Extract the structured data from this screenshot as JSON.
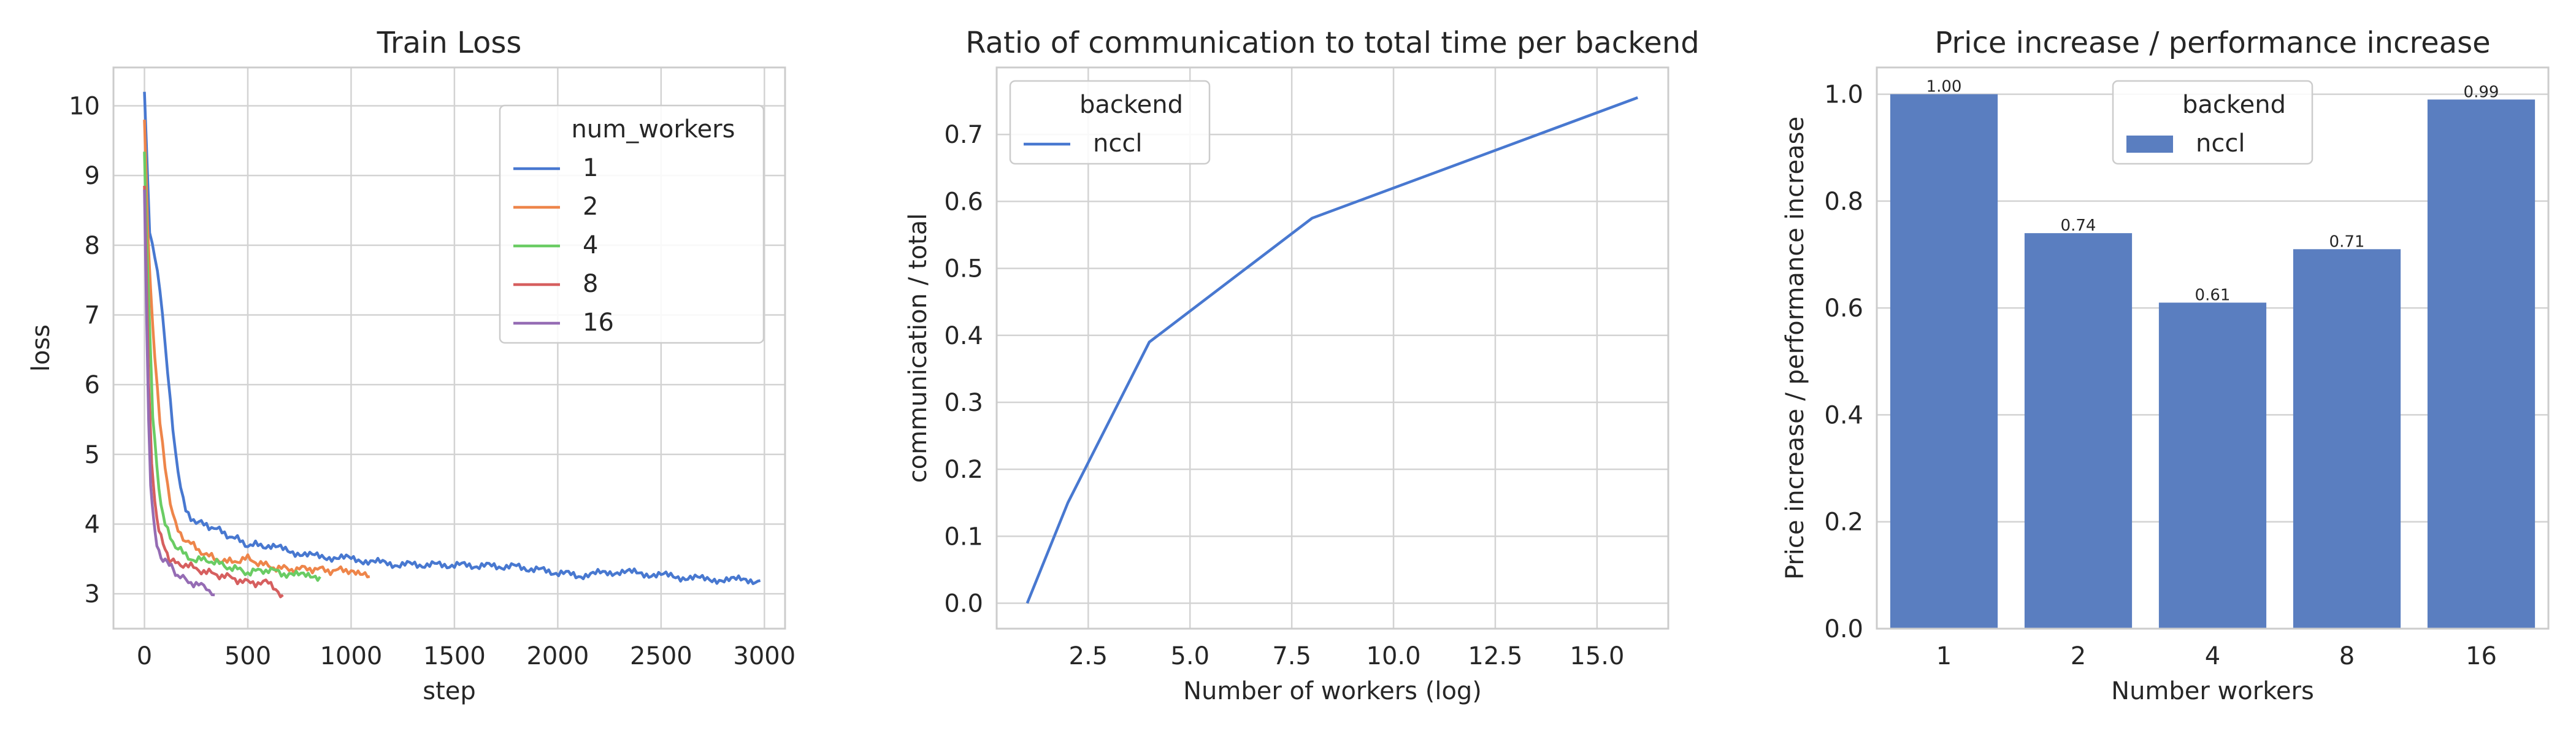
{
  "colors": {
    "blue": "#4878d0",
    "orange": "#ee854a",
    "green": "#6acc64",
    "red": "#d65f5f",
    "purple": "#956cb4",
    "bar": "#5a7ec0",
    "grid": "#d3d3d3",
    "axes_edge": "#cccccc"
  },
  "chart_data": [
    {
      "type": "line",
      "title": "Train Loss",
      "xlabel": "step",
      "ylabel": "loss",
      "xlim": [
        -150,
        3100
      ],
      "ylim": [
        2.5,
        10.55
      ],
      "xticks": [
        0,
        500,
        1000,
        1500,
        2000,
        2500,
        3000
      ],
      "xtick_labels": [
        "0",
        "500",
        "1000",
        "1500",
        "2000",
        "2500",
        "3000"
      ],
      "yticks": [
        3,
        4,
        5,
        6,
        7,
        8,
        9,
        10
      ],
      "ytick_labels": [
        "3",
        "4",
        "5",
        "6",
        "7",
        "8",
        "9",
        "10"
      ],
      "grid": true,
      "legend": {
        "title": "num_workers",
        "placement": "upper right"
      },
      "series": [
        {
          "name": "1",
          "color": "blue",
          "x": [
            0,
            25,
            50,
            75,
            100,
            125,
            150,
            175,
            200,
            250,
            300,
            400,
            500,
            600,
            800,
            1000,
            1200,
            1500,
            1800,
            2100,
            2300,
            2500,
            2700,
            2980
          ],
          "y": [
            10.15,
            8.2,
            7.9,
            7.3,
            6.6,
            5.8,
            5.0,
            4.5,
            4.2,
            4.05,
            3.95,
            3.85,
            3.75,
            3.65,
            3.55,
            3.5,
            3.45,
            3.4,
            3.35,
            3.32,
            3.3,
            3.25,
            3.22,
            3.2
          ]
        },
        {
          "name": "2",
          "color": "orange",
          "x": [
            0,
            15,
            30,
            50,
            75,
            100,
            125,
            150,
            200,
            250,
            300,
            400,
            500,
            600,
            700,
            800,
            900,
            1000,
            1090
          ],
          "y": [
            9.8,
            8.3,
            7.3,
            6.4,
            5.5,
            4.8,
            4.3,
            4.0,
            3.75,
            3.65,
            3.55,
            3.5,
            3.45,
            3.4,
            3.38,
            3.35,
            3.33,
            3.32,
            3.3
          ]
        },
        {
          "name": "4",
          "color": "green",
          "x": [
            0,
            10,
            25,
            40,
            60,
            80,
            100,
            125,
            150,
            200,
            250,
            300,
            400,
            500,
            600,
            700,
            850
          ],
          "y": [
            9.3,
            8.2,
            6.8,
            5.6,
            4.8,
            4.3,
            4.0,
            3.8,
            3.7,
            3.55,
            3.5,
            3.45,
            3.4,
            3.35,
            3.3,
            3.28,
            3.25
          ]
        },
        {
          "name": "8",
          "color": "red",
          "x": [
            0,
            10,
            20,
            35,
            50,
            70,
            90,
            120,
            150,
            200,
            300,
            400,
            500,
            600,
            670
          ],
          "y": [
            8.9,
            7.5,
            6.0,
            4.9,
            4.3,
            3.9,
            3.7,
            3.55,
            3.45,
            3.4,
            3.3,
            3.25,
            3.2,
            3.1,
            3.0
          ]
        },
        {
          "name": "16",
          "color": "purple",
          "x": [
            0,
            10,
            20,
            30,
            45,
            60,
            80,
            100,
            130,
            160,
            200,
            250,
            300,
            340
          ],
          "y": [
            8.8,
            7.0,
            5.5,
            4.6,
            4.0,
            3.7,
            3.55,
            3.45,
            3.35,
            3.3,
            3.2,
            3.15,
            3.05,
            3.0
          ]
        }
      ]
    },
    {
      "type": "line",
      "title": "Ratio of communication to total time per backend",
      "xlabel": "Number of workers (log)",
      "ylabel": "communication / total",
      "xlim": [
        0.25,
        16.75
      ],
      "ylim": [
        -0.038,
        0.8
      ],
      "xticks": [
        2.5,
        5.0,
        7.5,
        10.0,
        12.5,
        15.0
      ],
      "xtick_labels": [
        "2.5",
        "5.0",
        "7.5",
        "10.0",
        "12.5",
        "15.0"
      ],
      "yticks": [
        0.0,
        0.1,
        0.2,
        0.3,
        0.4,
        0.5,
        0.6,
        0.7
      ],
      "ytick_labels": [
        "0.0",
        "0.1",
        "0.2",
        "0.3",
        "0.4",
        "0.5",
        "0.6",
        "0.7"
      ],
      "grid": true,
      "legend": {
        "title": "backend",
        "placement": "upper left"
      },
      "series": [
        {
          "name": "nccl",
          "color": "blue",
          "x": [
            1,
            2,
            4,
            8,
            16
          ],
          "y": [
            0.0,
            0.15,
            0.39,
            0.575,
            0.755
          ]
        }
      ]
    },
    {
      "type": "bar",
      "title": "Price increase / performance increase",
      "xlabel": "Number workers",
      "ylabel": "Price increase / performance increase",
      "ylim": [
        0,
        1.05
      ],
      "yticks": [
        0.0,
        0.2,
        0.4,
        0.6,
        0.8,
        1.0
      ],
      "ytick_labels": [
        "0.0",
        "0.2",
        "0.4",
        "0.6",
        "0.8",
        "1.0"
      ],
      "grid": true,
      "legend": {
        "title": "backend",
        "placement": "upper center"
      },
      "categories": [
        "1",
        "2",
        "4",
        "8",
        "16"
      ],
      "series": [
        {
          "name": "nccl",
          "color": "bar",
          "values": [
            1.0,
            0.74,
            0.61,
            0.71,
            0.99
          ],
          "labels": [
            "1.00",
            "0.74",
            "0.61",
            "0.71",
            "0.99"
          ]
        }
      ]
    }
  ]
}
